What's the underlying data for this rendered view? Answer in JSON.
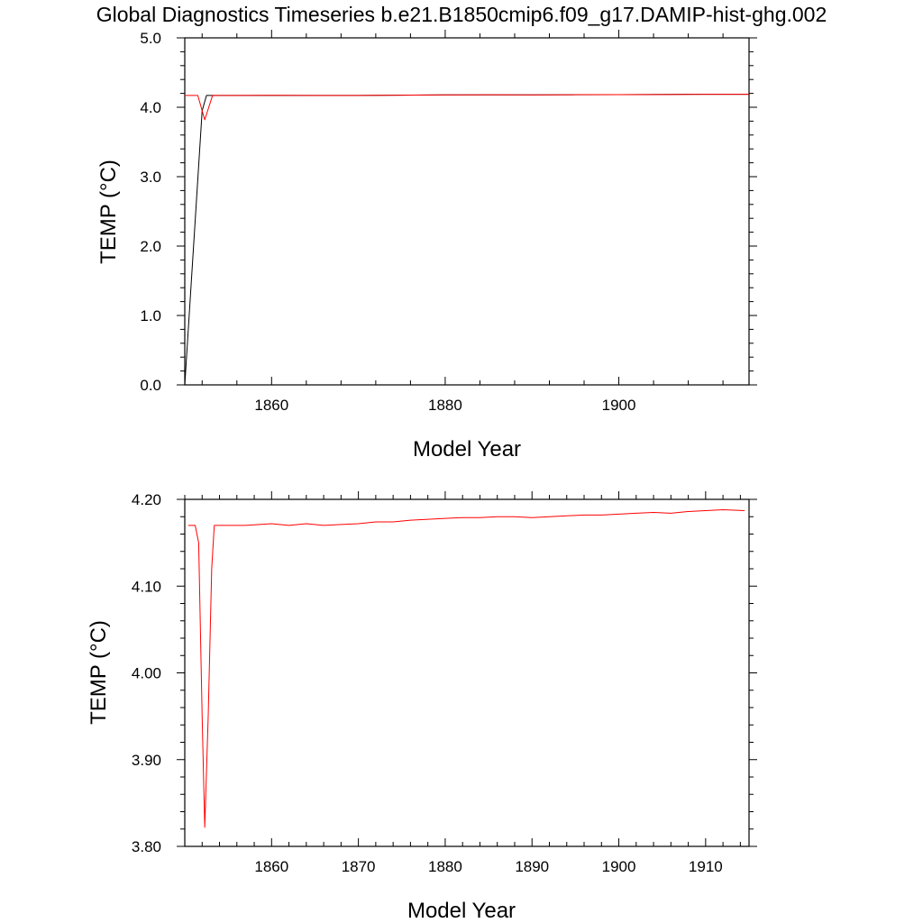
{
  "figure": {
    "title": "Global Diagnostics Timeseries b.e21.B1850cmip6.f09_g17.DAMIP-hist-ghg.002"
  },
  "chart_data": [
    {
      "type": "line",
      "xlabel": "Model Year",
      "ylabel": "TEMP (°C)",
      "xlim": [
        1850,
        1915
      ],
      "ylim": [
        0.0,
        5.0
      ],
      "x_ticks": [
        1860,
        1880,
        1900
      ],
      "y_ticks": [
        0.0,
        1.0,
        2.0,
        3.0,
        4.0,
        5.0
      ],
      "y_tick_labels": [
        "0.0",
        "1.0",
        "2.0",
        "3.0",
        "4.0",
        "5.0"
      ],
      "grid": false,
      "series": [
        {
          "color": "#000000",
          "x": [
            1850,
            1852,
            1852.5,
            1853,
            1855,
            1860,
            1870,
            1880,
            1890,
            1900,
            1910,
            1915
          ],
          "values": [
            0.0,
            3.95,
            4.17,
            4.17,
            4.17,
            4.17,
            4.17,
            4.178,
            4.178,
            4.182,
            4.187,
            4.187
          ]
        },
        {
          "color": "#ff0000",
          "x": [
            1850,
            1851.5,
            1852.3,
            1853.2,
            1854,
            1856,
            1860,
            1865,
            1870,
            1875,
            1880,
            1885,
            1890,
            1895,
            1900,
            1905,
            1910,
            1915
          ],
          "values": [
            4.17,
            4.17,
            3.82,
            4.17,
            4.17,
            4.17,
            4.172,
            4.17,
            4.171,
            4.174,
            4.178,
            4.18,
            4.178,
            4.181,
            4.182,
            4.184,
            4.187,
            4.187
          ]
        }
      ]
    },
    {
      "type": "line",
      "xlabel": "Model Year",
      "ylabel": "TEMP (°C)",
      "xlim": [
        1850,
        1915
      ],
      "ylim": [
        3.8,
        4.2
      ],
      "x_ticks": [
        1860,
        1870,
        1880,
        1890,
        1900,
        1910
      ],
      "y_ticks": [
        3.8,
        3.9,
        4.0,
        4.1,
        4.2
      ],
      "y_tick_labels": [
        "3.80",
        "3.90",
        "4.00",
        "4.10",
        "4.20"
      ],
      "grid": false,
      "series": [
        {
          "color": "#ff0000",
          "x": [
            1850.4,
            1851.2,
            1851.6,
            1852.0,
            1852.3,
            1852.7,
            1853.1,
            1853.4,
            1855,
            1857,
            1860,
            1862,
            1864,
            1866,
            1868,
            1870,
            1872,
            1874,
            1876,
            1878,
            1880,
            1882,
            1884,
            1886,
            1888,
            1890,
            1892,
            1894,
            1896,
            1898,
            1900,
            1902,
            1904,
            1906,
            1908,
            1910,
            1912,
            1914.5
          ],
          "values": [
            4.17,
            4.17,
            4.15,
            3.95,
            3.822,
            3.95,
            4.12,
            4.17,
            4.17,
            4.17,
            4.172,
            4.17,
            4.172,
            4.17,
            4.171,
            4.172,
            4.174,
            4.174,
            4.176,
            4.177,
            4.178,
            4.179,
            4.179,
            4.18,
            4.18,
            4.179,
            4.18,
            4.181,
            4.182,
            4.182,
            4.183,
            4.184,
            4.185,
            4.184,
            4.186,
            4.187,
            4.188,
            4.187
          ]
        }
      ]
    }
  ]
}
